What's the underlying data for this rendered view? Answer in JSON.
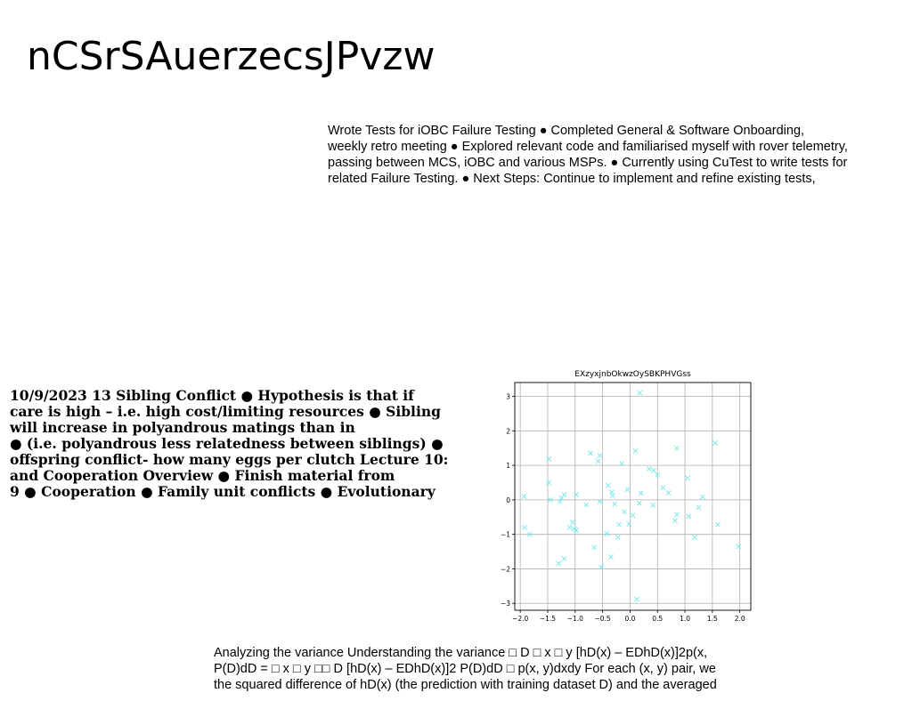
{
  "page": {
    "title": "nCSrSAuerzecsJPvzw"
  },
  "text_block_1": {
    "lines": [
      "Wrote Tests for iOBC Failure Testing ● Completed General & Software Onboarding,",
      "weekly retro meeting ● Explored relevant code and familiarised myself with rover telemetry,",
      "passing between MCS, iOBC and various MSPs. ● Currently using CuTest to write tests for",
      "related Failure Testing. ● Next Steps: Continue to implement and refine existing tests,"
    ]
  },
  "text_block_2": {
    "lines": [
      "10/9/2023 13 Sibling Conflict ● Hypothesis is that if",
      "care is high – i.e. high cost/limiting resources ● Sibling",
      "will increase in polyandrous matings than in",
      "● (i.e. polyandrous less relatedness between siblings) ●",
      "offspring conflict- how many eggs per clutch Lecture 10:",
      "and Cooperation Overview ● Finish material from",
      "9 ● Cooperation ● Family unit conflicts ● Evolutionary"
    ]
  },
  "text_block_3": {
    "lines": [
      "Analyzing the variance Understanding the variance □ D □ x □ y [hD(x) – EDhD(x)]2p(x,",
      "P(D)dD = □ x □ y □□ D [hD(x) – EDhD(x)]2 P(D)dD □ p(x, y)dxdy For each (x, y) pair, we",
      "the squared difference of hD(x) (the prediction with training dataset D) and the averaged"
    ]
  },
  "chart_data": {
    "type": "scatter",
    "title": "EXzyxjnbOkwzOySBKPHVGss",
    "xlabel": "",
    "ylabel": "",
    "xlim": [
      -2.1,
      2.2
    ],
    "ylim": [
      -3.2,
      3.4
    ],
    "xticks": [
      -2.0,
      -1.5,
      -1.0,
      -0.5,
      0.0,
      0.5,
      1.0,
      1.5,
      2.0
    ],
    "xtick_labels": [
      "−2.0",
      "−1.5",
      "−1.0",
      "−0.5",
      "0.0",
      "0.5",
      "1.0",
      "1.5",
      "2.0"
    ],
    "yticks": [
      -3,
      -2,
      -1,
      0,
      1,
      2,
      3
    ],
    "ytick_labels": [
      "−3",
      "−2",
      "−1",
      "0",
      "1",
      "2",
      "3"
    ],
    "grid": true,
    "marker": "x",
    "color": "#7fe8ec",
    "points": [
      {
        "x": 0.18,
        "y": 3.1
      },
      {
        "x": 1.55,
        "y": 1.65
      },
      {
        "x": 0.85,
        "y": 1.5
      },
      {
        "x": 0.1,
        "y": 1.42
      },
      {
        "x": -0.72,
        "y": 1.35
      },
      {
        "x": -0.55,
        "y": 1.28
      },
      {
        "x": -0.58,
        "y": 1.12
      },
      {
        "x": -1.48,
        "y": 1.18
      },
      {
        "x": -0.15,
        "y": 1.05
      },
      {
        "x": 0.35,
        "y": 0.9
      },
      {
        "x": 0.43,
        "y": 0.85
      },
      {
        "x": 0.5,
        "y": 0.72
      },
      {
        "x": 1.05,
        "y": 0.63
      },
      {
        "x": -1.48,
        "y": 0.5
      },
      {
        "x": -0.4,
        "y": 0.42
      },
      {
        "x": 0.6,
        "y": 0.35
      },
      {
        "x": -0.05,
        "y": 0.3
      },
      {
        "x": -0.33,
        "y": 0.22
      },
      {
        "x": 0.7,
        "y": 0.2
      },
      {
        "x": 0.2,
        "y": 0.2
      },
      {
        "x": -1.2,
        "y": 0.15
      },
      {
        "x": -0.98,
        "y": 0.15
      },
      {
        "x": -0.32,
        "y": 0.12
      },
      {
        "x": -1.93,
        "y": 0.1
      },
      {
        "x": -1.25,
        "y": 0.05
      },
      {
        "x": 1.32,
        "y": 0.08
      },
      {
        "x": -1.45,
        "y": 0.0
      },
      {
        "x": -1.28,
        "y": -0.05
      },
      {
        "x": -0.55,
        "y": -0.05
      },
      {
        "x": 0.17,
        "y": -0.1
      },
      {
        "x": -0.28,
        "y": -0.12
      },
      {
        "x": -0.8,
        "y": -0.15
      },
      {
        "x": 0.42,
        "y": -0.15
      },
      {
        "x": 1.25,
        "y": -0.22
      },
      {
        "x": -0.1,
        "y": -0.35
      },
      {
        "x": 0.85,
        "y": -0.42
      },
      {
        "x": 0.05,
        "y": -0.45
      },
      {
        "x": 1.07,
        "y": -0.48
      },
      {
        "x": 0.82,
        "y": -0.6
      },
      {
        "x": -1.05,
        "y": -0.65
      },
      {
        "x": -0.02,
        "y": -0.7
      },
      {
        "x": -0.2,
        "y": -0.72
      },
      {
        "x": 1.6,
        "y": -0.72
      },
      {
        "x": -1.92,
        "y": -0.8
      },
      {
        "x": -1.1,
        "y": -0.8
      },
      {
        "x": -1.02,
        "y": -0.85
      },
      {
        "x": -0.98,
        "y": -0.88
      },
      {
        "x": -0.42,
        "y": -0.98
      },
      {
        "x": -1.83,
        "y": -1.0
      },
      {
        "x": -0.22,
        "y": -1.08
      },
      {
        "x": 1.18,
        "y": -1.08
      },
      {
        "x": 1.98,
        "y": -1.35
      },
      {
        "x": -0.65,
        "y": -1.38
      },
      {
        "x": -0.35,
        "y": -1.65
      },
      {
        "x": -1.2,
        "y": -1.7
      },
      {
        "x": -1.3,
        "y": -1.85
      },
      {
        "x": -0.52,
        "y": -1.95
      },
      {
        "x": 0.12,
        "y": -2.88
      }
    ]
  }
}
